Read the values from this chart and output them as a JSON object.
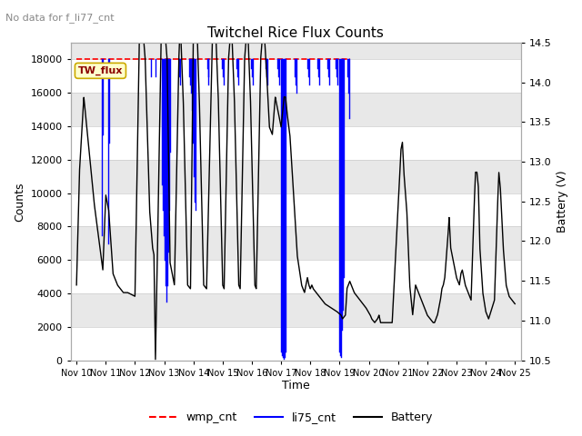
{
  "title": "Twitchel Rice Flux Counts",
  "no_data_text": "No data for f_li77_cnt",
  "xlabel": "Time",
  "ylabel_left": "Counts",
  "ylabel_right": "Battery (V)",
  "ylim_left": [
    0,
    19000
  ],
  "ylim_right": [
    10.5,
    14.5
  ],
  "yticks_left": [
    0,
    2000,
    4000,
    6000,
    8000,
    10000,
    12000,
    14000,
    16000,
    18000
  ],
  "yticks_right": [
    10.5,
    11.0,
    11.5,
    12.0,
    12.5,
    13.0,
    13.5,
    14.0,
    14.5
  ],
  "x_start": 9.8,
  "x_end": 25.2,
  "xtick_labels": [
    "Nov 10",
    "Nov 11",
    "Nov 12",
    "Nov 13",
    "Nov 14",
    "Nov 15",
    "Nov 16",
    "Nov 17",
    "Nov 18",
    "Nov 19",
    "Nov 20",
    "Nov 21",
    "Nov 22",
    "Nov 23",
    "Nov 24",
    "Nov 25"
  ],
  "xtick_positions": [
    10,
    11,
    12,
    13,
    14,
    15,
    16,
    17,
    18,
    19,
    20,
    21,
    22,
    23,
    24,
    25
  ],
  "legend_entries": [
    "wmp_cnt",
    "li75_cnt",
    "Battery"
  ],
  "legend_colors": [
    "red",
    "blue",
    "black"
  ],
  "annotation_text": "TW_flux",
  "background_color": "#ffffff",
  "band_colors": [
    "#ffffff",
    "#e8e8e8"
  ],
  "wmp_cnt_value": 18000,
  "wmp_x_start": 10.0,
  "wmp_x_end": 19.35,
  "li75_x_end": 19.35,
  "bat_ylim_low": 10.5,
  "bat_ylim_high": 14.5,
  "counts_max": 18000
}
